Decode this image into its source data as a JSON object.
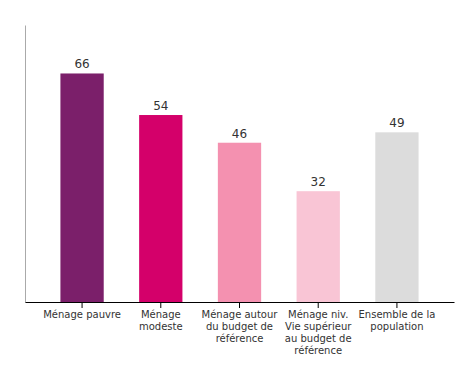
{
  "chart_data": {
    "type": "bar",
    "categories": [
      "Ménage pauvre",
      "Ménage\nmodeste",
      "Ménage autour\ndu budget de\nréférence",
      "Ménage niv.\nVie supérieur\nau budget de\nréférence",
      "Ensemble de la\npopulation"
    ],
    "values": [
      66,
      54,
      46,
      32,
      49
    ],
    "colors": [
      "#7B1F6A",
      "#D4006A",
      "#F491B0",
      "#F9C5D5",
      "#DCDCDC"
    ],
    "ylim": [
      0,
      80
    ],
    "grid": false,
    "data_labels": true,
    "tick_labels": "x"
  }
}
